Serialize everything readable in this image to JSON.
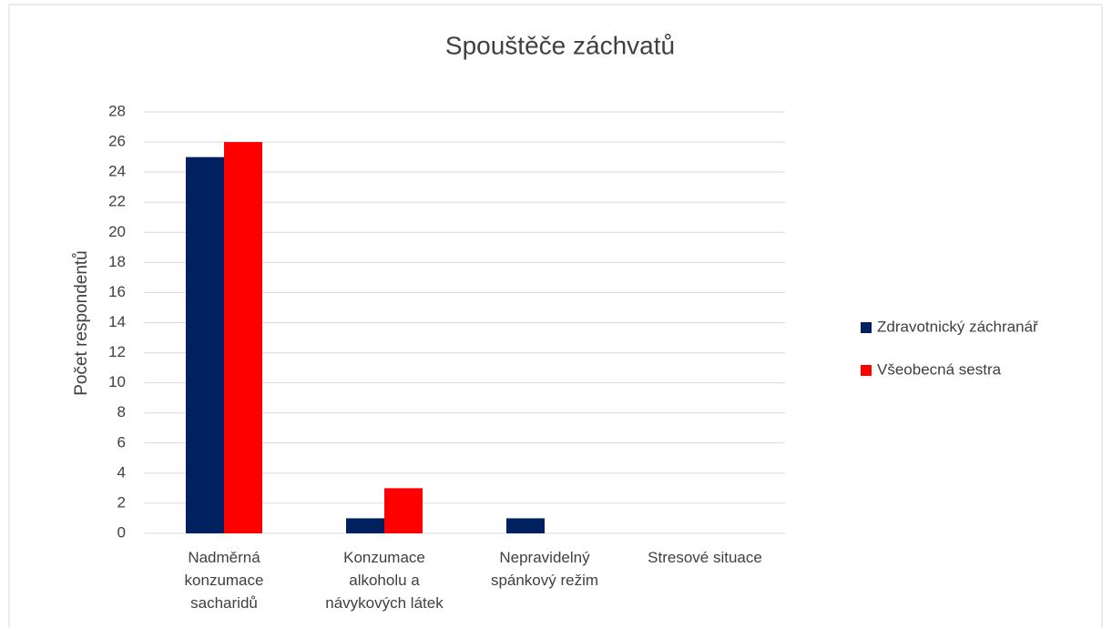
{
  "chart_data": {
    "type": "bar",
    "title": "Spouštěče záchvatů",
    "y_label": "Počet respondentů",
    "categories": [
      "Nadměrná konzumace sacharidů",
      "Konzumace alkoholu a návykových látek",
      "Nepravidelný spánkový režim",
      "Stresové situace"
    ],
    "series": [
      {
        "name": "Zdravotnický záchranář",
        "color": "#002060",
        "values": [
          25,
          1,
          1,
          0
        ]
      },
      {
        "name": "Všeobecná sestra",
        "color": "#ff0000",
        "values": [
          26,
          3,
          0,
          0
        ]
      }
    ],
    "ylim": [
      0,
      28
    ],
    "yticks": [
      0,
      2,
      4,
      6,
      8,
      10,
      12,
      14,
      16,
      18,
      20,
      22,
      24,
      26,
      28
    ],
    "grid": true,
    "legend": "right"
  }
}
